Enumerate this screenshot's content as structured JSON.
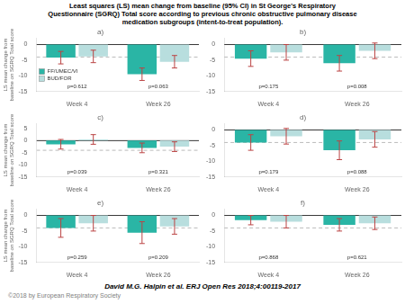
{
  "title": "Least squares (LS) mean change from baseline (95% CI) in St George's Respiratory\nQuestionnaire (SGRQ) Total score according to previous chronic obstructive pulmonary disease\nmedication subgroups (intent-to-treat population).",
  "annotations": [
    {
      "text": "David M.G. Halpin et al. ERJ Open Res 2018;4:00119-2017"
    },
    {
      "text": "©2018 by European Respiratory Society",
      "color": "gray"
    }
  ],
  "chart_data": [
    {
      "type": "bar",
      "title": "a)",
      "categories": [
        "Week 4",
        "Week 26"
      ],
      "ylabel": "LS mean change from\nbaseline on SGRQ Total score",
      "series": [
        {
          "name": "FF/UMEC/VI",
          "color": "#2ab5a5",
          "values": [
            -4.2,
            -9.5
          ],
          "ci": [
            [
              -6.2,
              -2.2
            ],
            [
              -11.5,
              -7.5
            ]
          ],
          "ci_color": "#bb4444"
        },
        {
          "name": "BUD/FOR",
          "color": "#b8dede",
          "values": [
            -3.8,
            -5.5
          ],
          "ci": [
            [
              -5.8,
              -1.8
            ],
            [
              -7.5,
              -3.5
            ]
          ],
          "ci_color": "#bb4444"
        }
      ],
      "hlines": [
        {
          "y": -4,
          "color": "#bbbbbb",
          "line_style": "dashed"
        },
        {
          "y": 0,
          "color": "black",
          "line_style": "solid"
        }
      ],
      "annotations": [
        "p=0.612",
        "p=0.063"
      ],
      "ylim": [
        -15,
        2
      ],
      "yticks": [
        0,
        -5,
        -10,
        -15
      ],
      "grid": false,
      "legend": "lower left"
    },
    {
      "type": "bar",
      "title": "b)",
      "categories": [
        "Week 4",
        "Week 26"
      ],
      "series": [
        {
          "name": "FF/UMEC/VI",
          "color": "#2ab5a5",
          "values": [
            -4.5,
            -6.0
          ],
          "ci": [
            [
              -7.0,
              -2.0
            ],
            [
              -8.5,
              -3.5
            ]
          ],
          "ci_color": "#bb4444"
        },
        {
          "name": "BUD/FOR",
          "color": "#b8dede",
          "values": [
            -2.5,
            -2.0
          ],
          "ci": [
            [
              -5.0,
              0.0
            ],
            [
              -4.5,
              0.5
            ]
          ],
          "ci_color": "#bb4444"
        }
      ],
      "hlines": [
        {
          "y": -4,
          "color": "#bbbbbb",
          "line_style": "dashed"
        },
        {
          "y": 0,
          "color": "black",
          "line_style": "solid"
        }
      ],
      "annotations": [
        "p=0.175",
        "p=0.008"
      ],
      "ylim": [
        -15,
        2
      ],
      "yticks": [
        0,
        -5,
        -10,
        -15
      ],
      "grid": false
    },
    {
      "type": "bar",
      "title": "c)",
      "categories": [
        "Week 4",
        "Week 26"
      ],
      "ylabel": "LS mean change from\nbaseline on SGRQ Total score",
      "series": [
        {
          "name": "FF/UMEC/VI",
          "color": "#2ab5a5",
          "values": [
            -1.5,
            -3.0
          ],
          "ci": [
            [
              -3.5,
              0.5
            ],
            [
              -5.0,
              -1.0
            ]
          ],
          "ci_color": "#bb4444"
        },
        {
          "name": "BUD/FOR",
          "color": "#b8dede",
          "values": [
            0.5,
            -2.5
          ],
          "ci": [
            [
              -1.5,
              2.5
            ],
            [
              -4.5,
              -0.5
            ]
          ],
          "ci_color": "#bb4444"
        }
      ],
      "hlines": [
        {
          "y": -4,
          "color": "#bbbbbb",
          "line_style": "dashed"
        },
        {
          "y": 0,
          "color": "black",
          "line_style": "solid"
        }
      ],
      "annotations": [
        "p=0.039",
        "p=0.321"
      ],
      "ylim": [
        -15,
        7
      ],
      "yticks": [
        5,
        0,
        -5,
        -10,
        -15
      ],
      "grid": false
    },
    {
      "type": "bar",
      "title": "d)",
      "categories": [
        "Week 4",
        "Week 26"
      ],
      "series": [
        {
          "name": "FF/UMEC/VI",
          "color": "#2ab5a5",
          "values": [
            -4.0,
            -6.5
          ],
          "ci": [
            [
              -6.5,
              -1.5
            ],
            [
              -9.5,
              -3.5
            ]
          ],
          "ci_color": "#bb4444"
        },
        {
          "name": "BUD/FOR",
          "color": "#b8dede",
          "values": [
            -2.0,
            -3.0
          ],
          "ci": [
            [
              -4.5,
              0.5
            ],
            [
              -5.5,
              -0.5
            ]
          ],
          "ci_color": "#bb4444"
        }
      ],
      "hlines": [
        {
          "y": -4,
          "color": "#bbbbbb",
          "line_style": "dashed"
        },
        {
          "y": 0,
          "color": "black",
          "line_style": "solid"
        }
      ],
      "annotations": [
        "p=0.179",
        "p=0.088"
      ],
      "ylim": [
        -15,
        2
      ],
      "yticks": [
        0,
        -5,
        -10,
        -15
      ],
      "grid": false
    },
    {
      "type": "bar",
      "title": "e)",
      "categories": [
        "Week 4",
        "Week 26"
      ],
      "ylabel": "LS mean change from\nbaseline on SGRQ Total score",
      "series": [
        {
          "name": "FF/UMEC/VI",
          "color": "#2ab5a5",
          "values": [
            -4.0,
            -5.5
          ],
          "ci": [
            [
              -7.0,
              -1.0
            ],
            [
              -9.0,
              -2.0
            ]
          ],
          "ci_color": "#bb4444"
        },
        {
          "name": "BUD/FOR",
          "color": "#b8dede",
          "values": [
            -2.5,
            -3.5
          ],
          "ci": [
            [
              -5.0,
              0.0
            ],
            [
              -6.0,
              -1.0
            ]
          ],
          "ci_color": "#bb4444"
        }
      ],
      "hlines": [
        {
          "y": -4,
          "color": "#bbbbbb",
          "line_style": "dashed"
        },
        {
          "y": 0,
          "color": "black",
          "line_style": "solid"
        }
      ],
      "annotations": [
        "p=0.259",
        "p=0.209"
      ],
      "ylim": [
        -15,
        2
      ],
      "yticks": [
        0,
        -5,
        -10,
        -15
      ],
      "grid": false
    },
    {
      "type": "bar",
      "title": "f)",
      "categories": [
        "Week 4",
        "Week 26"
      ],
      "series": [
        {
          "name": "FF/UMEC/VI",
          "color": "#2ab5a5",
          "values": [
            -1.5,
            -3.0
          ],
          "ci": [
            [
              -3.0,
              0.0
            ],
            [
              -5.0,
              -1.0
            ]
          ],
          "ci_color": "#bb4444"
        },
        {
          "name": "BUD/FOR",
          "color": "#b8dede",
          "values": [
            -2.0,
            -2.5
          ],
          "ci": [
            [
              -4.0,
              0.0
            ],
            [
              -4.5,
              -0.5
            ]
          ],
          "ci_color": "#bb4444"
        }
      ],
      "hlines": [
        {
          "y": -4,
          "color": "#bbbbbb",
          "line_style": "dashed"
        },
        {
          "y": 0,
          "color": "black",
          "line_style": "solid"
        }
      ],
      "annotations": [
        "p=0.868",
        "p=0.621"
      ],
      "ylim": [
        -15,
        2
      ],
      "yticks": [
        0,
        -5,
        -10,
        -15
      ],
      "grid": false
    }
  ]
}
